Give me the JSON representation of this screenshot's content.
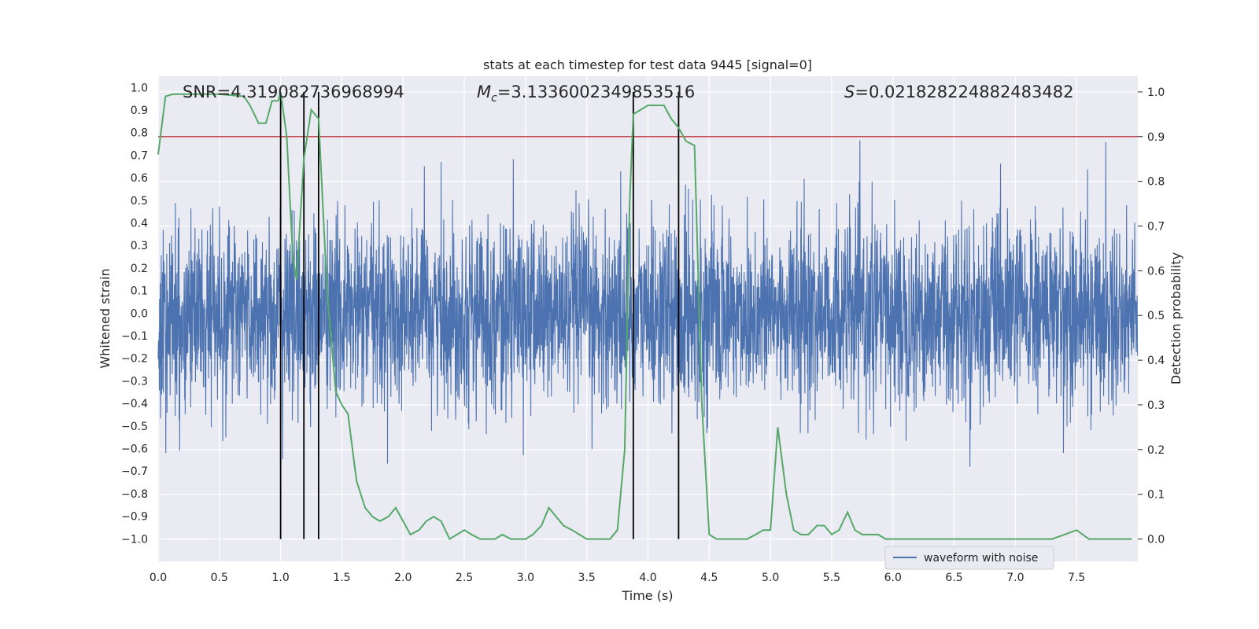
{
  "chart_data": {
    "type": "line",
    "title": "stats at each timestep for test data 9445 [signal=0]",
    "xlabel": "Time (s)",
    "ylabel_left": "Whitened strain",
    "ylabel_right": "Detection probability",
    "xlim": [
      0,
      8.0
    ],
    "ylim_left": [
      -1.1,
      1.05
    ],
    "ylim_right": [
      -0.05,
      1.035
    ],
    "x_ticks": [
      "0.0",
      "0.5",
      "1.0",
      "1.5",
      "2.0",
      "2.5",
      "3.0",
      "3.5",
      "4.0",
      "4.5",
      "5.0",
      "5.5",
      "6.0",
      "6.5",
      "7.0",
      "7.5"
    ],
    "y_ticks_left": [
      "1.0",
      "0.9",
      "0.8",
      "0.7",
      "0.6",
      "0.5",
      "0.4",
      "0.3",
      "0.2",
      "0.1",
      "0.0",
      "-0.1",
      "-0.2",
      "-0.3",
      "-0.4",
      "-0.5",
      "-0.6",
      "-0.7",
      "-0.8",
      "-0.9",
      "-1.0"
    ],
    "y_ticks_right": [
      "1.0",
      "0.9",
      "0.8",
      "0.7",
      "0.6",
      "0.5",
      "0.4",
      "0.3",
      "0.2",
      "0.1",
      "0.0"
    ],
    "grid": true,
    "legend": {
      "placement": "lower-right",
      "entries": [
        "waveform with noise"
      ]
    },
    "annotations": {
      "snr": "SNR=4.319082736968994",
      "mc_symbol": "M",
      "mc_subscript": "c",
      "mc_value": "=3.1336002349853516",
      "s_symbol": "S",
      "s_value": "=0.021828224882483482"
    },
    "colors": {
      "waveform": "#4c72b0",
      "probability": "#55a868",
      "threshold": "#c44e52",
      "vline": "#000000",
      "plot_bg": "#eaeaf2",
      "grid": "#ffffff"
    },
    "threshold_right": 0.9,
    "vlines_x": [
      1.0,
      1.19,
      1.31,
      3.88,
      4.25
    ],
    "probability_series": {
      "name": "Detection probability",
      "x": [
        0.0,
        0.06,
        0.12,
        0.25,
        0.5,
        0.7,
        0.75,
        0.82,
        0.88,
        0.93,
        0.98,
        1.0,
        1.05,
        1.1,
        1.13,
        1.19,
        1.25,
        1.31,
        1.38,
        1.45,
        1.5,
        1.55,
        1.62,
        1.69,
        1.75,
        1.81,
        1.88,
        1.94,
        2.0,
        2.06,
        2.13,
        2.19,
        2.25,
        2.31,
        2.38,
        2.44,
        2.5,
        2.56,
        2.63,
        2.69,
        2.75,
        2.81,
        2.88,
        2.94,
        3.0,
        3.06,
        3.13,
        3.19,
        3.25,
        3.31,
        3.38,
        3.44,
        3.5,
        3.56,
        3.63,
        3.69,
        3.75,
        3.81,
        3.85,
        3.88,
        3.94,
        4.0,
        4.06,
        4.13,
        4.19,
        4.25,
        4.31,
        4.38,
        4.44,
        4.5,
        4.56,
        4.63,
        4.69,
        4.75,
        4.81,
        4.88,
        4.94,
        5.0,
        5.06,
        5.13,
        5.19,
        5.25,
        5.31,
        5.38,
        5.44,
        5.5,
        5.56,
        5.63,
        5.69,
        5.75,
        5.81,
        5.88,
        5.94,
        6.0,
        6.1,
        6.2,
        6.3,
        6.4,
        6.5,
        6.6,
        6.7,
        6.8,
        6.9,
        7.0,
        7.1,
        7.2,
        7.3,
        7.4,
        7.5,
        7.55,
        7.6,
        7.7,
        7.8,
        7.95
      ],
      "values": [
        0.86,
        0.99,
        0.995,
        0.995,
        0.995,
        0.99,
        0.97,
        0.93,
        0.93,
        0.98,
        0.98,
        1.0,
        0.9,
        0.63,
        0.58,
        0.85,
        0.96,
        0.94,
        0.55,
        0.33,
        0.3,
        0.28,
        0.13,
        0.07,
        0.05,
        0.04,
        0.05,
        0.07,
        0.04,
        0.01,
        0.02,
        0.04,
        0.05,
        0.04,
        0.0,
        0.01,
        0.02,
        0.01,
        0.0,
        0.0,
        0.0,
        0.01,
        0.0,
        0.0,
        0.0,
        0.01,
        0.03,
        0.07,
        0.05,
        0.03,
        0.02,
        0.01,
        0.0,
        0.0,
        0.0,
        0.0,
        0.02,
        0.2,
        0.75,
        0.95,
        0.96,
        0.97,
        0.97,
        0.97,
        0.94,
        0.92,
        0.89,
        0.88,
        0.3,
        0.01,
        0.0,
        0.0,
        0.0,
        0.0,
        0.0,
        0.01,
        0.02,
        0.02,
        0.25,
        0.1,
        0.02,
        0.01,
        0.01,
        0.03,
        0.03,
        0.01,
        0.02,
        0.06,
        0.02,
        0.01,
        0.01,
        0.01,
        0.0,
        0.0,
        0.0,
        0.0,
        0.0,
        0.0,
        0.0,
        0.0,
        0.0,
        0.0,
        0.0,
        0.0,
        0.0,
        0.0,
        0.0,
        0.01,
        0.02,
        0.01,
        0.0,
        0.0,
        0.0,
        0.0
      ]
    }
  }
}
